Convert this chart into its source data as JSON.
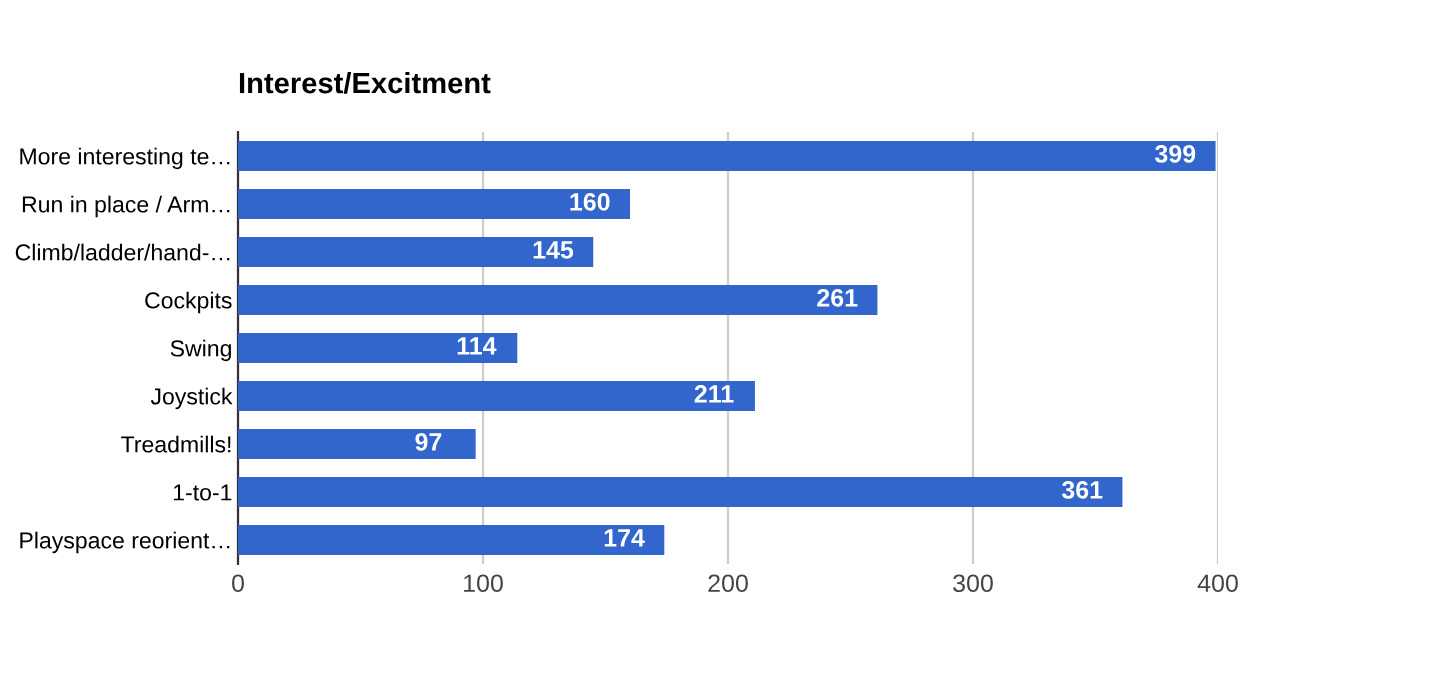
{
  "chart_data": {
    "type": "bar",
    "orientation": "horizontal",
    "title": "Interest/Excitment",
    "categories": [
      "More interesting te…",
      "Run in place / Arm…",
      "Climb/ladder/hand-…",
      "Cockpits",
      "Swing",
      "Joystick",
      "Treadmills!",
      "1-to-1",
      "Playspace reorient…"
    ],
    "values": [
      399,
      160,
      145,
      261,
      114,
      211,
      97,
      361,
      174
    ],
    "color": "#3366cc",
    "xlim": [
      0,
      400
    ],
    "xticks": [
      0,
      100,
      200,
      300,
      400
    ],
    "grid": "x",
    "data_labels": true
  }
}
